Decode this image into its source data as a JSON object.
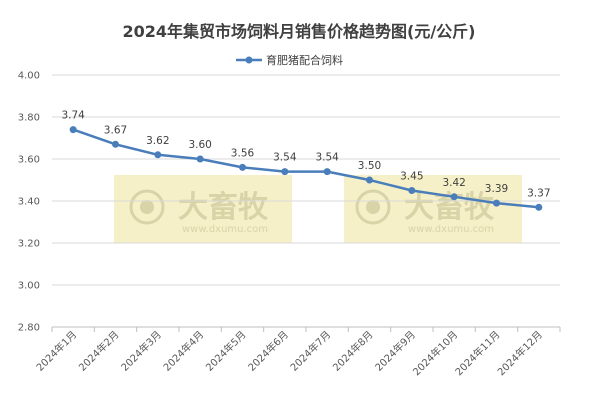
{
  "chart_data": {
    "type": "line",
    "title": "2024年集贸市场饲料月销售价格趋势图(元/公斤)",
    "xlabel": "",
    "ylabel": "",
    "categories": [
      "2024年1月",
      "2024年2月",
      "2024年3月",
      "2024年4月",
      "2024年5月",
      "2024年6月",
      "2024年7月",
      "2024年8月",
      "2024年9月",
      "2024年10月",
      "2024年11月",
      "2024年12月"
    ],
    "series": [
      {
        "name": "育肥猪配合饲料",
        "values": [
          3.74,
          3.67,
          3.62,
          3.6,
          3.56,
          3.54,
          3.54,
          3.5,
          3.45,
          3.42,
          3.39,
          3.37
        ]
      }
    ],
    "y_tick_labels": [
      "2.80",
      "3.00",
      "3.20",
      "3.40",
      "3.60",
      "3.80",
      "4.00"
    ],
    "data_labels": [
      "3.74",
      "3.67",
      "3.62",
      "3.60",
      "3.56",
      "3.54",
      "3.54",
      "3.50",
      "3.45",
      "3.42",
      "3.39",
      "3.37"
    ],
    "ylim": [
      2.8,
      4.0
    ],
    "grid": true,
    "legend_position": "top-center",
    "colors": {
      "series": "#4a7ebb",
      "watermark_bg": "#f5f0c8",
      "watermark_fg": "#d9d3a8"
    }
  },
  "watermark": {
    "brand": "大畜牧",
    "url": "www.dxumu.com"
  }
}
